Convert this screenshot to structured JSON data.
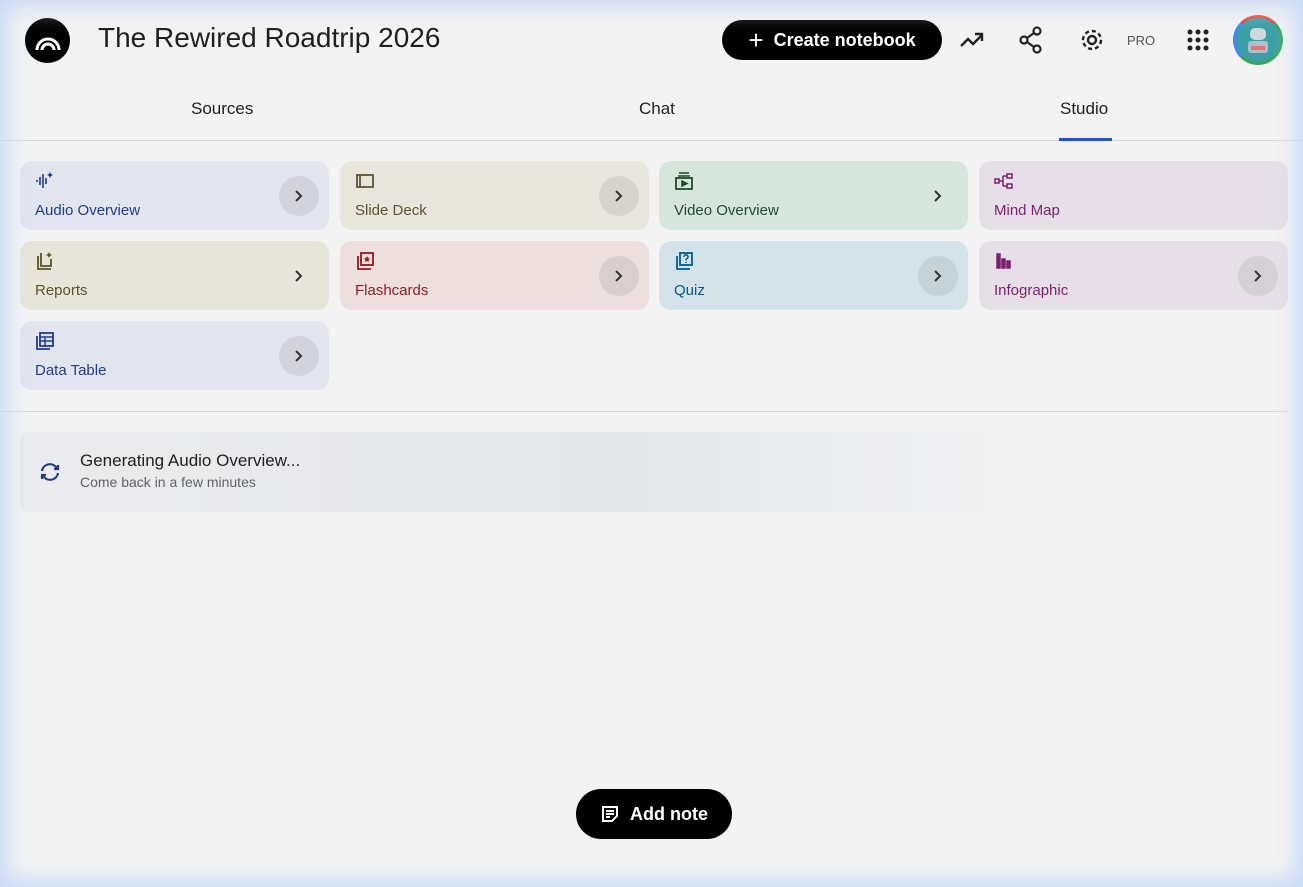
{
  "header": {
    "title": "The Rewired Roadtrip 2026",
    "create_label": "Create notebook",
    "pro_label": "PRO"
  },
  "tabs": [
    {
      "label": "Sources"
    },
    {
      "label": "Chat"
    },
    {
      "label": "Studio",
      "active": true
    }
  ],
  "studio": {
    "items": [
      {
        "label": "Audio Overview",
        "icon": "audio-waveform-icon",
        "bg": "#e2e4ee",
        "color": "#1f3d8a"
      },
      {
        "label": "Slide Deck",
        "icon": "slides-icon",
        "bg": "#e7e5dc",
        "color": "#5f5431"
      },
      {
        "label": "Video Overview",
        "icon": "video-icon",
        "bg": "#d7e6dc",
        "color": "#1e4d2b"
      },
      {
        "label": "Mind Map",
        "icon": "mind-map-icon",
        "bg": "#e6dfe7",
        "color": "#7b1f6e"
      },
      {
        "label": "Reports",
        "icon": "reports-icon",
        "bg": "#e7e5da",
        "color": "#5b5228"
      },
      {
        "label": "Flashcards",
        "icon": "flashcards-icon",
        "bg": "#ecdfde",
        "color": "#8c1d1d"
      },
      {
        "label": "Quiz",
        "icon": "quiz-icon",
        "bg": "#d4e3ea",
        "color": "#005a8a"
      },
      {
        "label": "Infographic",
        "icon": "infographic-icon",
        "bg": "#e6dfe7",
        "color": "#7b1f6e"
      },
      {
        "label": "Data Table",
        "icon": "table-icon",
        "bg": "#e2e4ee",
        "color": "#1f3d8a"
      }
    ]
  },
  "generating": {
    "title": "Generating Audio Overview...",
    "subtitle": "Come back in a few minutes"
  },
  "add_note_label": "Add note"
}
